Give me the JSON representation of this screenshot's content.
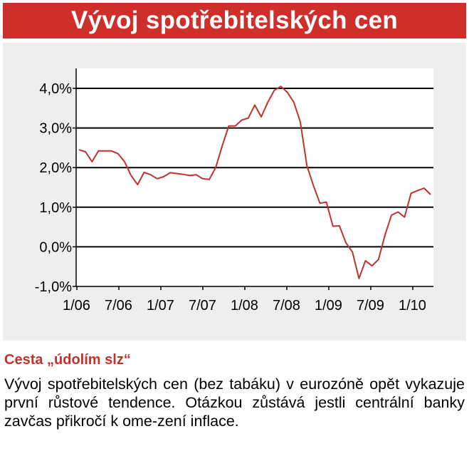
{
  "header": {
    "title": "Vývoj spotřebitelských cen"
  },
  "chart_data": {
    "type": "line",
    "title": "",
    "xlabel": "",
    "ylabel": "",
    "ylim": [
      -1.0,
      4.0
    ],
    "y_ticks": [
      4.0,
      3.0,
      2.0,
      1.0,
      0.0,
      -1.0
    ],
    "y_tick_labels": [
      "4,0%",
      "3,0%",
      "2,0%",
      "1,0%",
      "0,0%",
      "-1,0%"
    ],
    "x_tick_labels": [
      "1/06",
      "7/06",
      "1/07",
      "7/07",
      "1/08",
      "7/08",
      "1/09",
      "7/09",
      "1/10"
    ],
    "grid": true,
    "color": "#c0322e",
    "series": [
      {
        "values": [
          2.45,
          2.4,
          2.15,
          2.42,
          2.42,
          2.42,
          2.35,
          2.15,
          1.8,
          1.57,
          1.88,
          1.82,
          1.72,
          1.77,
          1.87,
          1.85,
          1.83,
          1.8,
          1.82,
          1.72,
          1.7,
          2.0,
          2.55,
          3.05,
          3.05,
          3.2,
          3.25,
          3.58,
          3.28,
          3.65,
          3.95,
          4.05,
          3.9,
          3.65,
          3.15,
          2.05,
          1.55,
          1.1,
          1.13,
          0.52,
          0.53,
          0.1,
          -0.13,
          -0.8,
          -0.35,
          -0.48,
          -0.32,
          0.3,
          0.8,
          0.88,
          0.75,
          1.35,
          1.42,
          1.48,
          1.32
        ]
      }
    ]
  },
  "subtitle": "Cesta „údolím slz“",
  "body_text": "Vývoj spotřebitelských cen (bez tabáku) v eurozóně opět vykazuje první růstové tendence. Otázkou zůstává jestli centrální banky zavčas přikročí k ome-zení inflace."
}
